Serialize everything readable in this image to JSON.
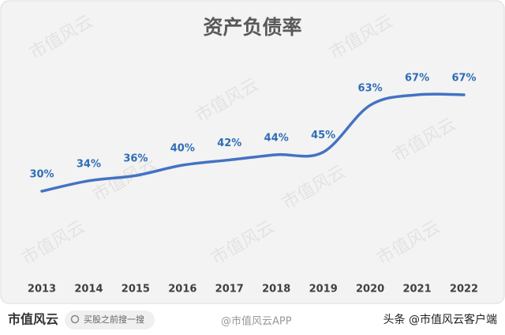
{
  "chart_data": {
    "type": "line",
    "title": "资产负债率",
    "categories": [
      "2013",
      "2014",
      "2015",
      "2016",
      "2017",
      "2018",
      "2019",
      "2020",
      "2021",
      "2022"
    ],
    "series": [
      {
        "name": "资产负债率",
        "color": "#4472c4",
        "values": [
          30,
          34,
          36,
          40,
          42,
          44,
          45,
          63,
          67,
          67
        ],
        "value_labels": [
          "30%",
          "34%",
          "36%",
          "40%",
          "42%",
          "44%",
          "45%",
          "63%",
          "67%",
          "67%"
        ]
      }
    ]
  },
  "watermark": "市值风云",
  "footer": {
    "logo": "市值风云",
    "search": "买股之前搜一搜",
    "source": "@市值风云APP",
    "credit": "头条 @市值风云客户端"
  }
}
